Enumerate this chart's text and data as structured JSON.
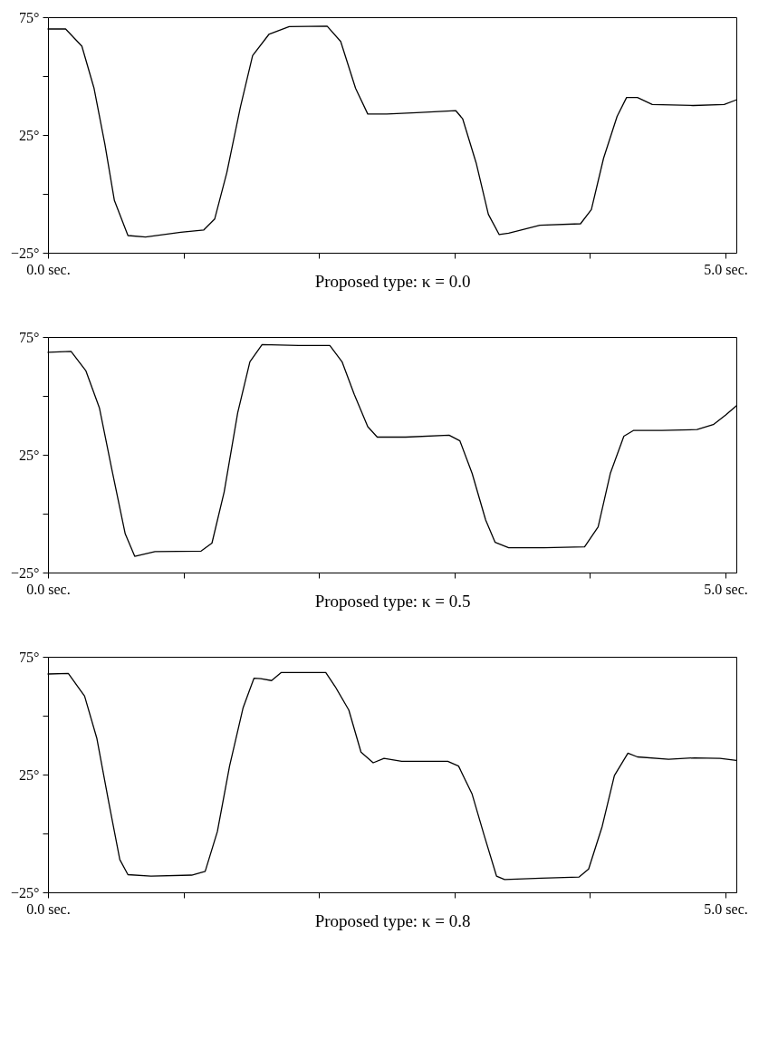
{
  "chart_data": [
    {
      "type": "line",
      "xlabel": "Proposed type: κ = 0.0",
      "xlim": [
        0,
        5.08
      ],
      "ylim": [
        -25,
        75
      ],
      "xticks": [
        {
          "value": 0,
          "label": "0.0 sec."
        },
        {
          "value": 1,
          "label": null
        },
        {
          "value": 2,
          "label": null
        },
        {
          "value": 3,
          "label": null
        },
        {
          "value": 4,
          "label": null
        },
        {
          "value": 5,
          "label": "5.0 sec."
        }
      ],
      "yticks": [
        {
          "value": -25,
          "label": "−25°"
        },
        {
          "value": 0,
          "label": null
        },
        {
          "value": 25,
          "label": "25°"
        },
        {
          "value": 50,
          "label": null
        },
        {
          "value": 75,
          "label": "75°"
        }
      ],
      "grid": false,
      "series": [
        {
          "color": "#000000",
          "x": [
            0,
            0.13,
            0.25,
            0.34,
            0.42,
            0.49,
            0.59,
            0.72,
            0.98,
            1.15,
            1.23,
            1.32,
            1.42,
            1.51,
            1.63,
            1.78,
            2.06,
            2.16,
            2.27,
            2.36,
            2.5,
            2.72,
            3.01,
            3.06,
            3.16,
            3.25,
            3.33,
            3.4,
            3.63,
            3.93,
            4.01,
            4.1,
            4.2,
            4.27,
            4.35,
            4.46,
            4.76,
            4.99,
            5.08
          ],
          "values": [
            70,
            70,
            62.7,
            44.8,
            21,
            -2.8,
            -17.7,
            -18.3,
            -16.3,
            -15.3,
            -10.7,
            9.1,
            36.9,
            58.7,
            67.7,
            71,
            71.2,
            64.7,
            44.8,
            33.9,
            33.9,
            34.5,
            35.3,
            31.9,
            13.1,
            -8.7,
            -17.3,
            -16.7,
            -13.3,
            -12.7,
            -6.7,
            15.1,
            32.9,
            40.9,
            40.9,
            37.9,
            37.5,
            37.9,
            39.9
          ]
        }
      ]
    },
    {
      "type": "line",
      "xlabel": "Proposed type: κ = 0.5",
      "xlim": [
        0,
        5.08
      ],
      "ylim": [
        -25,
        75
      ],
      "xticks": [
        {
          "value": 0,
          "label": "0.0 sec."
        },
        {
          "value": 1,
          "label": null
        },
        {
          "value": 2,
          "label": null
        },
        {
          "value": 3,
          "label": null
        },
        {
          "value": 4,
          "label": null
        },
        {
          "value": 5,
          "label": "5.0 sec."
        }
      ],
      "yticks": [
        {
          "value": -25,
          "label": "−25°"
        },
        {
          "value": 0,
          "label": null
        },
        {
          "value": 25,
          "label": "25°"
        },
        {
          "value": 50,
          "label": null
        },
        {
          "value": 75,
          "label": "75°"
        }
      ],
      "grid": false,
      "series": [
        {
          "color": "#000000",
          "x": [
            0,
            0.17,
            0.28,
            0.38,
            0.47,
            0.57,
            0.64,
            0.79,
            1.13,
            1.21,
            1.3,
            1.4,
            1.49,
            1.58,
            1.85,
            2.08,
            2.17,
            2.26,
            2.36,
            2.43,
            2.64,
            2.96,
            3.04,
            3.13,
            3.23,
            3.3,
            3.4,
            3.66,
            3.96,
            4.06,
            4.15,
            4.25,
            4.32,
            4.53,
            4.79,
            4.91,
            5.0,
            5.08
          ],
          "values": [
            68.5,
            68.9,
            60.6,
            44.8,
            19.1,
            -8.6,
            -18.1,
            -16.1,
            -15.9,
            -12.5,
            9.2,
            42.8,
            64.5,
            71.8,
            71.4,
            71.4,
            64.5,
            50.7,
            36.9,
            32.5,
            32.5,
            33.3,
            30.9,
            17.1,
            -2.7,
            -12.2,
            -14.5,
            -14.5,
            -14.1,
            -5.6,
            17.1,
            32.9,
            35.3,
            35.3,
            35.7,
            37.8,
            41.8,
            45.8
          ]
        }
      ]
    },
    {
      "type": "line",
      "xlabel": "Proposed type: κ = 0.8",
      "xlim": [
        0,
        5.08
      ],
      "ylim": [
        -25,
        75
      ],
      "xticks": [
        {
          "value": 0,
          "label": "0.0 sec."
        },
        {
          "value": 1,
          "label": null
        },
        {
          "value": 2,
          "label": null
        },
        {
          "value": 3,
          "label": null
        },
        {
          "value": 4,
          "label": null
        },
        {
          "value": 5,
          "label": "5.0 sec."
        }
      ],
      "yticks": [
        {
          "value": -25,
          "label": "−25°"
        },
        {
          "value": 0,
          "label": null
        },
        {
          "value": 25,
          "label": "25°"
        },
        {
          "value": 50,
          "label": null
        },
        {
          "value": 75,
          "label": "75°"
        }
      ],
      "grid": false,
      "series": [
        {
          "color": "#000000",
          "x": [
            0,
            0.15,
            0.27,
            0.36,
            0.45,
            0.53,
            0.59,
            0.76,
            1.06,
            1.16,
            1.25,
            1.34,
            1.44,
            1.52,
            1.57,
            1.65,
            1.72,
            2.05,
            2.12,
            2.22,
            2.31,
            2.4,
            2.48,
            2.61,
            2.95,
            3.03,
            3.13,
            3.22,
            3.31,
            3.37,
            3.64,
            3.92,
            3.99,
            4.09,
            4.18,
            4.28,
            4.35,
            4.58,
            4.77,
            4.96,
            5.08
          ],
          "values": [
            67.7,
            67.9,
            58.3,
            40.5,
            12.7,
            -11.1,
            -17.5,
            -18.1,
            -17.7,
            -16.1,
            0.8,
            28.6,
            53.4,
            65.9,
            65.7,
            64.9,
            68.3,
            68.3,
            62.3,
            52.4,
            34.5,
            30.0,
            31.9,
            30.6,
            30.6,
            28.6,
            16.7,
            -1.0,
            -18.1,
            -19.6,
            -19.0,
            -18.5,
            -15.1,
            3.0,
            24.6,
            34.1,
            32.5,
            31.5,
            32.1,
            31.9,
            31.0
          ]
        }
      ]
    }
  ]
}
